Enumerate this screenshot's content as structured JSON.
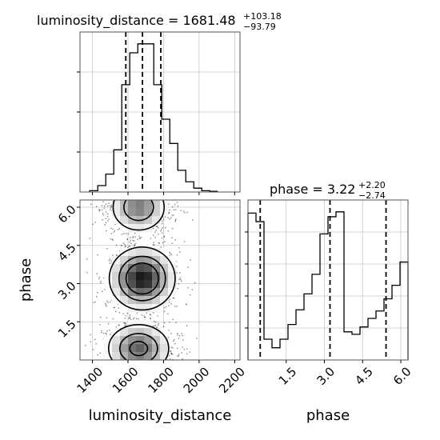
{
  "chart_data": {
    "type": "corner",
    "parameters": [
      "luminosity_distance",
      "phase"
    ],
    "titles": {
      "luminosity_distance": {
        "label": "luminosity_distance = 1681.48",
        "plus": "+103.18",
        "minus": "−93.79"
      },
      "phase": {
        "label": "phase = 3.22",
        "plus": "+2.20",
        "minus": "−2.74"
      }
    },
    "axes": {
      "luminosity_distance": {
        "label": "luminosity_distance",
        "range": [
          1330,
          2230
        ],
        "ticks": [
          1400,
          1600,
          1800,
          2000,
          2200
        ],
        "tick_labels": [
          "1400",
          "1600",
          "1800",
          "2000",
          "2200"
        ]
      },
      "phase": {
        "label": "phase",
        "range": [
          0.0,
          6.2832
        ],
        "ticks": [
          1.5,
          3.0,
          4.5,
          6.0
        ],
        "tick_labels": [
          "1.5",
          "3.0",
          "4.5",
          "6.0"
        ]
      }
    },
    "quantiles": {
      "luminosity_distance": [
        1587.69,
        1681.48,
        1784.66
      ],
      "phase": [
        0.48,
        3.22,
        5.42
      ]
    },
    "hist_luminosity_distance": {
      "bin_edges": [
        1384,
        1430,
        1475,
        1520,
        1565,
        1610,
        1655,
        1700,
        1745,
        1790,
        1835,
        1880,
        1925,
        1970,
        2015,
        2060,
        2105
      ],
      "counts": [
        1,
        5,
        14,
        33,
        84,
        109,
        116,
        116,
        84,
        57,
        38,
        17,
        8,
        3,
        1,
        0.5
      ]
    },
    "hist_phase": {
      "bin_edges": [
        0,
        0.3142,
        0.6283,
        0.9425,
        1.2566,
        1.5708,
        1.885,
        2.1991,
        2.5133,
        2.8274,
        3.1416,
        3.4558,
        3.7699,
        4.0841,
        4.3982,
        4.7124,
        5.0265,
        5.3407,
        5.6549,
        5.969,
        6.2832
      ],
      "counts": [
        120,
        113,
        17,
        10,
        17,
        29,
        41,
        54,
        70,
        103,
        117,
        121,
        23,
        21,
        27,
        34,
        40,
        50,
        61,
        80
      ]
    },
    "density_modes": [
      {
        "x": 1680,
        "y": 3.2,
        "sx": 90,
        "sy": 0.6,
        "weight": 1.0
      },
      {
        "x": 1660,
        "y": 0.45,
        "sx": 90,
        "sy": 0.5,
        "weight": 0.7
      },
      {
        "x": 1660,
        "y": 6.0,
        "sx": 80,
        "sy": 0.5,
        "weight": 0.6
      }
    ],
    "grid": true
  }
}
